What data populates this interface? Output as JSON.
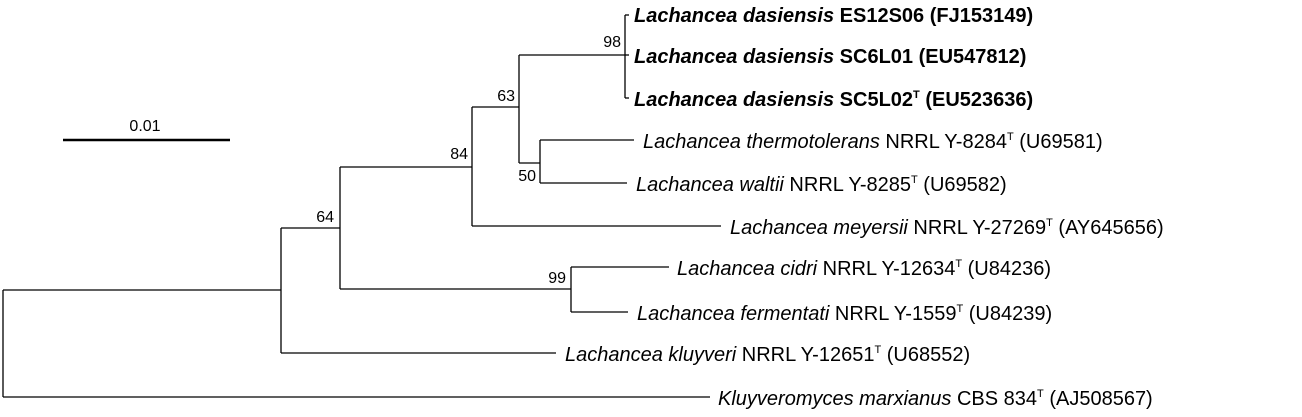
{
  "scale_bar": {
    "label": "0.01"
  },
  "bootstrap": {
    "n98": "98",
    "n63": "63",
    "n84": "84",
    "n50": "50",
    "n64": "64",
    "n99": "99"
  },
  "taxa": [
    {
      "genus": "Lachancea dasiensis",
      "strain": " ES12S06",
      "type_mark": "",
      "accession": " (FJ153149)",
      "bold": true
    },
    {
      "genus": "Lachancea dasiensis",
      "strain": " SC6L01",
      "type_mark": "",
      "accession": " (EU547812)",
      "bold": true
    },
    {
      "genus": "Lachancea dasiensis",
      "strain": " SC5L02",
      "type_mark": "T",
      "accession": " (EU523636)",
      "bold": true
    },
    {
      "genus": "Lachancea thermotolerans",
      "strain": " NRRL Y-8284",
      "type_mark": "T",
      "accession": " (U69581)",
      "bold": false
    },
    {
      "genus": "Lachancea waltii",
      "strain": " NRRL Y-8285",
      "type_mark": "T",
      "accession": " (U69582)",
      "bold": false
    },
    {
      "genus": "Lachancea meyersii",
      "strain": " NRRL Y-27269",
      "type_mark": "T",
      "accession": " (AY645656)",
      "bold": false
    },
    {
      "genus": "Lachancea cidri",
      "strain": " NRRL Y-12634",
      "type_mark": "T",
      "accession": " (U84236)",
      "bold": false
    },
    {
      "genus": "Lachancea fermentati",
      "strain": " NRRL Y-1559",
      "type_mark": "T",
      "accession": " (U84239)",
      "bold": false
    },
    {
      "genus": "Lachancea kluyveri",
      "strain": " NRRL Y-12651",
      "type_mark": "T",
      "accession": " (U68552)",
      "bold": false
    },
    {
      "genus": "Kluyveromyces marxianus",
      "strain": " CBS 834",
      "type_mark": "T",
      "accession": " (AJ508567)",
      "bold": false
    }
  ]
}
